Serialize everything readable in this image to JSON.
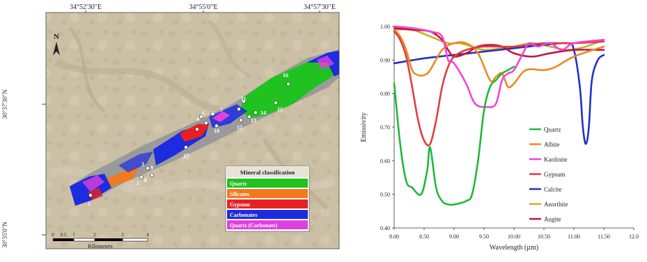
{
  "map": {
    "top_coords": [
      "34°52'30\"E",
      "34°55'0\"E",
      "34°57'30\"E"
    ],
    "left_coords": [
      "30°37'30\"N",
      "30°35'0\"N"
    ],
    "north_label": "N",
    "scale_ticks": [
      "0",
      "0.5",
      "1",
      "2",
      "3",
      "4"
    ],
    "scale_unit": "Kilometers",
    "legend_title": "Mineral classification",
    "legend": [
      {
        "label": "Quartz",
        "color": "#1fc21f"
      },
      {
        "label": "Silicates",
        "color": "#f07a1c"
      },
      {
        "label": "Gypsum",
        "color": "#e82020"
      },
      {
        "label": "Carbonates",
        "color": "#1c2ce0"
      },
      {
        "label": "Quartz (Carbonate)",
        "color": "#e040e0"
      }
    ],
    "point_labels": [
      "1",
      "2",
      "3",
      "4",
      "5",
      "6",
      "7",
      "8",
      "9",
      "10",
      "11",
      "12",
      "13",
      "14",
      "15",
      "16",
      "17"
    ]
  },
  "chart_data": {
    "type": "line",
    "xlabel": "Wavelength (µm)",
    "ylabel": "Emissivity",
    "xlim": [
      8.0,
      12.0
    ],
    "ylim": [
      0.4,
      1.0
    ],
    "x_ticks": [
      "8.00",
      "8.50",
      "9.00",
      "9.50",
      "10.00",
      "10.50",
      "11.00",
      "11.50",
      "12.0"
    ],
    "y_ticks": [
      "0.40",
      "0.50",
      "0.60",
      "0.70",
      "0.80",
      "0.90",
      "1.00"
    ],
    "legend_position": "right",
    "series": [
      {
        "name": "Quartz",
        "color": "#1eb83a",
        "x": [
          8.0,
          8.1,
          8.2,
          8.3,
          8.45,
          8.55,
          8.6,
          8.7,
          8.8,
          8.9,
          9.0,
          9.2,
          9.3,
          9.4,
          9.5,
          9.6,
          9.7,
          9.8,
          9.9,
          10.0
        ],
        "y": [
          0.83,
          0.65,
          0.54,
          0.52,
          0.5,
          0.57,
          0.64,
          0.52,
          0.48,
          0.47,
          0.47,
          0.48,
          0.5,
          0.6,
          0.75,
          0.82,
          0.84,
          0.86,
          0.87,
          0.88
        ]
      },
      {
        "name": "Albite",
        "color": "#e88a24",
        "x": [
          8.0,
          8.1,
          8.2,
          8.3,
          8.4,
          8.5,
          8.6,
          8.8,
          9.0,
          9.2,
          9.4,
          9.6,
          9.7,
          9.8,
          9.9,
          10.0,
          10.2,
          10.5,
          10.7,
          11.0,
          11.5
        ],
        "y": [
          0.99,
          0.97,
          0.93,
          0.87,
          0.855,
          0.855,
          0.87,
          0.93,
          0.95,
          0.95,
          0.92,
          0.84,
          0.85,
          0.86,
          0.82,
          0.83,
          0.87,
          0.87,
          0.88,
          0.91,
          0.94
        ]
      },
      {
        "name": "Kaolinite",
        "color": "#f044d8",
        "x": [
          8.0,
          8.3,
          8.6,
          8.8,
          8.9,
          9.0,
          9.2,
          9.35,
          9.55,
          9.7,
          9.8,
          9.9,
          10.0,
          10.15,
          10.25,
          10.4,
          10.6,
          10.8,
          11.0,
          11.5
        ],
        "y": [
          1.0,
          0.995,
          0.985,
          0.97,
          0.9,
          0.89,
          0.83,
          0.77,
          0.76,
          0.77,
          0.84,
          0.86,
          0.87,
          0.92,
          0.95,
          0.94,
          0.95,
          0.93,
          0.95,
          0.96
        ]
      },
      {
        "name": "Gypsum",
        "color": "#e23c3c",
        "x": [
          8.0,
          8.1,
          8.2,
          8.3,
          8.4,
          8.5,
          8.6,
          8.7,
          8.8,
          8.9,
          9.0,
          9.2,
          9.5,
          10.0,
          10.5,
          11.0,
          11.5
        ],
        "y": [
          0.985,
          0.96,
          0.91,
          0.82,
          0.72,
          0.66,
          0.65,
          0.72,
          0.82,
          0.88,
          0.91,
          0.93,
          0.94,
          0.94,
          0.95,
          0.95,
          0.955
        ]
      },
      {
        "name": "Calcite",
        "color": "#2030c8",
        "x": [
          8.0,
          8.5,
          9.0,
          9.5,
          10.0,
          10.5,
          10.9,
          11.0,
          11.1,
          11.15,
          11.2,
          11.25,
          11.3,
          11.4,
          11.5
        ],
        "y": [
          0.89,
          0.905,
          0.915,
          0.925,
          0.935,
          0.945,
          0.95,
          0.93,
          0.82,
          0.7,
          0.65,
          0.7,
          0.84,
          0.9,
          0.915
        ]
      },
      {
        "name": "Anorthite",
        "color": "#c4b020",
        "x": [
          8.0,
          8.3,
          8.6,
          8.9,
          9.1,
          9.3,
          9.5,
          9.8,
          10.0,
          10.3,
          10.6,
          10.9,
          11.2,
          11.5
        ],
        "y": [
          0.99,
          0.99,
          0.97,
          0.95,
          0.95,
          0.94,
          0.93,
          0.935,
          0.94,
          0.95,
          0.94,
          0.93,
          0.94,
          0.96
        ]
      },
      {
        "name": "Augite",
        "color": "#c41440",
        "x": [
          8.0,
          8.3,
          8.6,
          8.8,
          8.9,
          9.0,
          9.2,
          9.4,
          9.6,
          9.8,
          10.0,
          10.3,
          10.6,
          11.0,
          11.5
        ],
        "y": [
          0.995,
          0.99,
          0.985,
          0.96,
          0.93,
          0.91,
          0.92,
          0.94,
          0.945,
          0.94,
          0.92,
          0.91,
          0.92,
          0.93,
          0.93
        ]
      }
    ]
  }
}
